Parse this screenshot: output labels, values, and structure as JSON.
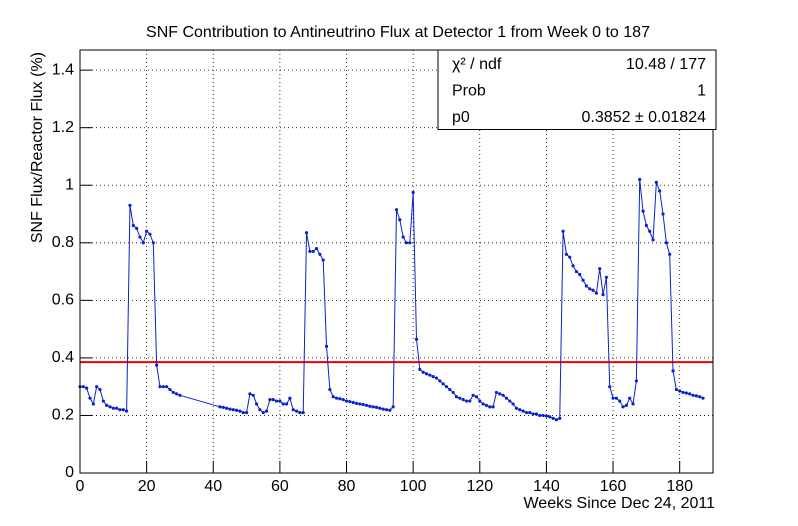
{
  "chart_data": {
    "type": "line",
    "title": "SNF Contribution to Antineutrino Flux at Detector 1 from Week 0 to 187",
    "x_label": "Weeks Since Dec 24, 2011",
    "y_label": "SNF Flux/Reactor Flux (%)",
    "xlim": [
      0,
      190
    ],
    "ylim": [
      0,
      1.47
    ],
    "xticks": [
      0,
      20,
      40,
      60,
      80,
      100,
      120,
      140,
      160,
      180
    ],
    "yticks": [
      0,
      0.2,
      0.4,
      0.6,
      0.8,
      1,
      1.2,
      1.4
    ],
    "grid": true,
    "color": "#0a22cc",
    "x": [
      0,
      1,
      2,
      3,
      4,
      5,
      6,
      7,
      8,
      9,
      10,
      11,
      12,
      13,
      14,
      15,
      16,
      17,
      18,
      19,
      20,
      21,
      22,
      23,
      24,
      25,
      26,
      27,
      28,
      29,
      30,
      42,
      43,
      44,
      45,
      46,
      47,
      48,
      49,
      50,
      51,
      52,
      53,
      54,
      55,
      56,
      57,
      58,
      59,
      60,
      61,
      62,
      63,
      64,
      65,
      66,
      67,
      68,
      69,
      70,
      71,
      72,
      73,
      74,
      75,
      76,
      77,
      78,
      79,
      80,
      81,
      82,
      83,
      84,
      85,
      86,
      87,
      88,
      89,
      90,
      91,
      92,
      93,
      94,
      95,
      96,
      97,
      98,
      99,
      100,
      101,
      102,
      103,
      104,
      105,
      106,
      107,
      108,
      109,
      110,
      111,
      112,
      113,
      114,
      115,
      116,
      117,
      118,
      119,
      120,
      121,
      122,
      123,
      124,
      125,
      126,
      127,
      128,
      129,
      130,
      131,
      132,
      133,
      134,
      135,
      136,
      137,
      138,
      139,
      140,
      141,
      142,
      143,
      144,
      145,
      146,
      147,
      148,
      149,
      150,
      151,
      152,
      153,
      154,
      155,
      156,
      157,
      158,
      159,
      160,
      161,
      162,
      163,
      164,
      165,
      166,
      167,
      168,
      169,
      170,
      171,
      172,
      173,
      174,
      175,
      176,
      177,
      178,
      179,
      180,
      181,
      182,
      183,
      184,
      185,
      186,
      187
    ],
    "values": [
      0.3,
      0.3,
      0.295,
      0.26,
      0.24,
      0.3,
      0.29,
      0.25,
      0.235,
      0.23,
      0.225,
      0.225,
      0.22,
      0.22,
      0.215,
      0.93,
      0.86,
      0.85,
      0.82,
      0.8,
      0.84,
      0.83,
      0.8,
      0.375,
      0.3,
      0.3,
      0.3,
      0.29,
      0.28,
      0.275,
      0.27,
      0.23,
      0.228,
      0.225,
      0.222,
      0.22,
      0.218,
      0.215,
      0.21,
      0.21,
      0.275,
      0.27,
      0.24,
      0.22,
      0.21,
      0.215,
      0.255,
      0.255,
      0.25,
      0.25,
      0.24,
      0.24,
      0.26,
      0.22,
      0.215,
      0.21,
      0.21,
      0.835,
      0.77,
      0.77,
      0.78,
      0.76,
      0.74,
      0.44,
      0.29,
      0.265,
      0.26,
      0.258,
      0.255,
      0.25,
      0.248,
      0.245,
      0.242,
      0.24,
      0.238,
      0.235,
      0.232,
      0.23,
      0.228,
      0.225,
      0.222,
      0.22,
      0.218,
      0.23,
      0.915,
      0.88,
      0.82,
      0.8,
      0.8,
      0.975,
      0.465,
      0.36,
      0.35,
      0.345,
      0.34,
      0.335,
      0.33,
      0.32,
      0.31,
      0.3,
      0.29,
      0.28,
      0.265,
      0.26,
      0.255,
      0.25,
      0.25,
      0.27,
      0.265,
      0.25,
      0.24,
      0.235,
      0.23,
      0.23,
      0.28,
      0.275,
      0.27,
      0.26,
      0.25,
      0.24,
      0.225,
      0.22,
      0.215,
      0.21,
      0.21,
      0.205,
      0.205,
      0.2,
      0.2,
      0.198,
      0.195,
      0.19,
      0.185,
      0.19,
      0.84,
      0.76,
      0.75,
      0.72,
      0.7,
      0.69,
      0.67,
      0.65,
      0.64,
      0.635,
      0.625,
      0.71,
      0.62,
      0.68,
      0.3,
      0.26,
      0.26,
      0.25,
      0.23,
      0.235,
      0.26,
      0.24,
      0.32,
      1.02,
      0.91,
      0.86,
      0.84,
      0.81,
      1.01,
      0.98,
      0.9,
      0.8,
      0.76,
      0.355,
      0.29,
      0.285,
      0.28,
      0.278,
      0.275,
      0.27,
      0.268,
      0.265,
      0.26
    ],
    "fit_value": 0.3852,
    "fit_color": "#ee0000",
    "stats": {
      "rows": [
        [
          "χ² / ndf",
          "10.48 / 177"
        ],
        [
          "Prob",
          "1"
        ],
        [
          "p0",
          "0.3852 ± 0.01824"
        ]
      ]
    }
  }
}
